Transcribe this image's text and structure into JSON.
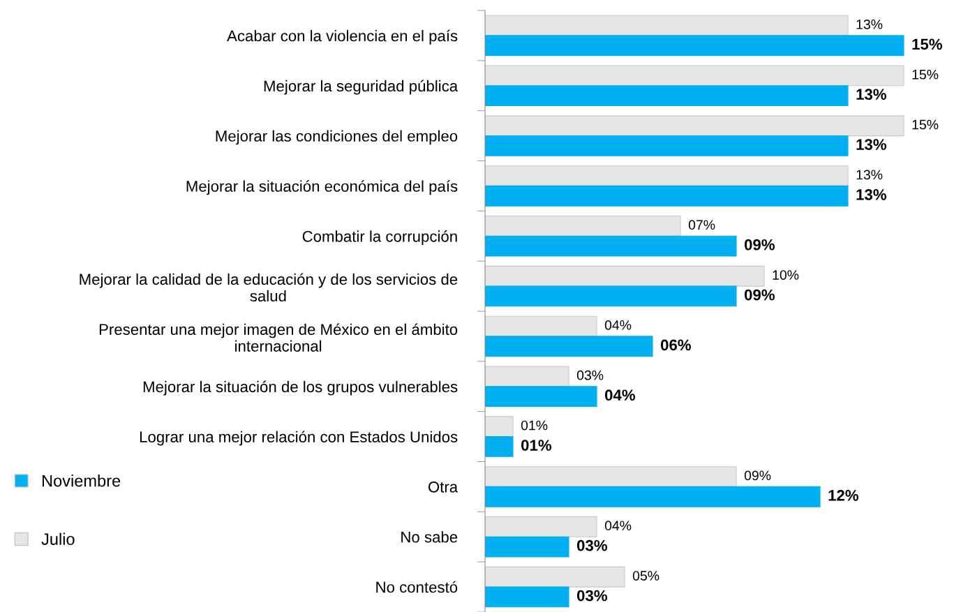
{
  "chart_data": {
    "type": "bar",
    "orientation": "horizontal",
    "legend": "left",
    "grid": false,
    "categories": [
      "Acabar con la violencia en el país",
      "Mejorar la seguridad pública",
      "Mejorar las condiciones del empleo",
      "Mejorar la situación económica del país",
      "Combatir la corrupción",
      "Mejorar la calidad de la educación y de los servicios de\nsalud",
      "Presentar una mejor imagen de México en el ámbito\ninternacional",
      "Mejorar la situación de los grupos vulnerables",
      "Lograr una mejor relación con Estados Unidos",
      "Otra",
      "No sabe",
      "No contestó"
    ],
    "series": [
      {
        "name": "Julio",
        "color": "#e6e6e6",
        "values": [
          13,
          15,
          15,
          13,
          7,
          10,
          4,
          3,
          1,
          9,
          4,
          5
        ],
        "value_labels": [
          "13%",
          "15%",
          "15%",
          "13%",
          "07%",
          "10%",
          "04%",
          "03%",
          "01%",
          "09%",
          "04%",
          "05%"
        ]
      },
      {
        "name": "Noviembre",
        "color": "#00b0f0",
        "values": [
          15,
          13,
          13,
          13,
          9,
          9,
          6,
          4,
          1,
          12,
          3,
          3
        ],
        "value_labels": [
          "15%",
          "13%",
          "13%",
          "13%",
          "09%",
          "09%",
          "06%",
          "04%",
          "01%",
          "12%",
          "03%",
          "03%"
        ]
      }
    ]
  }
}
